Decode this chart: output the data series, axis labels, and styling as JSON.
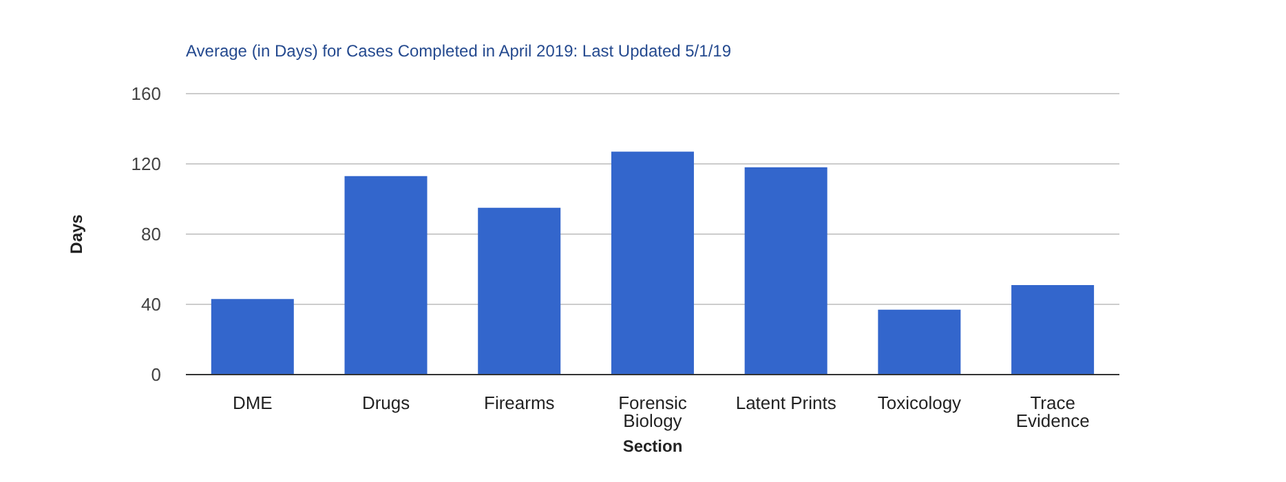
{
  "chart_data": {
    "type": "bar",
    "title": "Average (in Days) for Cases Completed in April 2019: Last Updated 5/1/19",
    "xlabel": "Section",
    "ylabel": "Days",
    "categories": [
      "DME",
      "Drugs",
      "Firearms",
      "Forensic Biology",
      "Latent Prints",
      "Toxicology",
      "Trace Evidence"
    ],
    "values": [
      43,
      113,
      95,
      127,
      118,
      37,
      51
    ],
    "color": "#3366cc",
    "ylim": [
      0,
      160
    ],
    "yticks": [
      0,
      40,
      80,
      120,
      160
    ],
    "grid": "y",
    "legend": false
  }
}
